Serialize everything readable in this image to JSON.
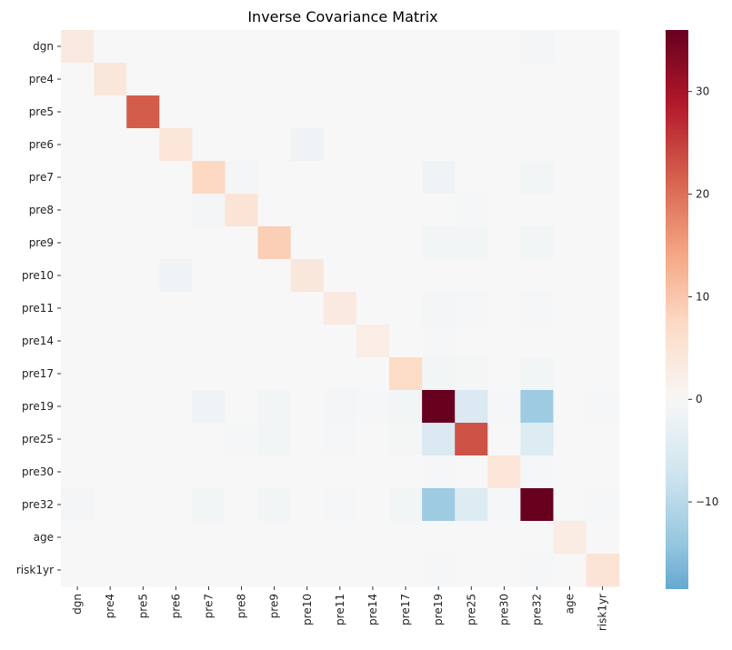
{
  "chart_data": {
    "type": "heatmap",
    "title": "Inverse Covariance Matrix",
    "xlabel": "",
    "ylabel": "",
    "labels": [
      "dgn",
      "pre4",
      "pre5",
      "pre6",
      "pre7",
      "pre8",
      "pre9",
      "pre10",
      "pre11",
      "pre14",
      "pre17",
      "pre19",
      "pre25",
      "pre30",
      "pre32",
      "age",
      "risk1yr"
    ],
    "matrix": [
      [
        3.5,
        0,
        0,
        0,
        0,
        0,
        0,
        0,
        0,
        0,
        0,
        0,
        0,
        0,
        -0.7,
        0,
        0
      ],
      [
        0,
        4,
        0,
        0,
        0,
        0,
        0,
        0,
        0,
        0,
        0,
        0,
        0,
        0,
        0,
        0,
        0
      ],
      [
        0,
        0,
        22,
        0,
        0,
        0,
        0,
        0,
        0,
        0,
        0,
        0,
        0,
        0,
        0,
        0,
        0
      ],
      [
        0,
        0,
        0,
        4.5,
        0,
        0,
        0,
        -1.5,
        0,
        0,
        0,
        0,
        0,
        0,
        0,
        0,
        0
      ],
      [
        0,
        0,
        0,
        0,
        7.5,
        -0.8,
        0,
        0,
        0,
        0,
        0,
        -1.5,
        0,
        0,
        -1,
        0,
        0
      ],
      [
        0,
        0,
        0,
        0,
        -0.8,
        5,
        0,
        0,
        0,
        0,
        0,
        0,
        -0.5,
        0,
        0,
        0,
        0
      ],
      [
        0,
        0,
        0,
        0,
        0,
        0,
        9,
        0,
        0,
        0,
        0,
        -1,
        -1,
        0,
        -1,
        0,
        0
      ],
      [
        0,
        0,
        0,
        -1.5,
        0,
        0,
        0,
        4,
        0,
        0,
        0,
        0,
        0,
        0,
        0,
        0,
        0
      ],
      [
        0,
        0,
        0,
        0,
        0,
        0,
        0,
        0,
        3.5,
        0,
        0,
        -0.7,
        -0.3,
        0,
        -0.5,
        0,
        0
      ],
      [
        0,
        0,
        0,
        0,
        0,
        0,
        0,
        0,
        0,
        2.5,
        0,
        -0.4,
        0,
        0,
        0,
        0,
        0
      ],
      [
        0,
        0,
        0,
        0,
        0,
        0,
        0,
        0,
        0,
        0,
        7,
        -1,
        -0.6,
        0,
        -1,
        0,
        0
      ],
      [
        0,
        0,
        0,
        0,
        -1.5,
        0,
        -1,
        0,
        -0.7,
        -0.4,
        -1,
        36,
        -5.5,
        -0.3,
        -13,
        0,
        -0.4
      ],
      [
        0,
        0,
        0,
        0,
        0,
        -0.5,
        -1,
        0,
        -0.3,
        0,
        -0.6,
        -5.5,
        23,
        0,
        -5,
        0,
        0
      ],
      [
        0,
        0,
        0,
        0,
        0,
        0,
        0,
        0,
        0,
        0,
        0,
        -0.3,
        0,
        4.5,
        -0.5,
        0,
        0
      ],
      [
        -0.7,
        0,
        0,
        0,
        -1,
        0,
        -1,
        0,
        -0.5,
        0,
        -1,
        -13,
        -5,
        -0.5,
        36,
        0,
        -0.3
      ],
      [
        0,
        0,
        0,
        0,
        0,
        0,
        0,
        0,
        0,
        0,
        0,
        0,
        0,
        0,
        0,
        3,
        0
      ],
      [
        0,
        0,
        0,
        0,
        0,
        0,
        0,
        0,
        0,
        0,
        0,
        -0.4,
        0,
        0,
        -0.3,
        0,
        5
      ]
    ],
    "colorbar": {
      "vmin": -18.5,
      "vmax": 36,
      "center": 0,
      "ticks": [
        "−10",
        "0",
        "10",
        "20",
        "30"
      ],
      "tick_values": [
        -10,
        0,
        10,
        20,
        30
      ]
    },
    "colormap": "RdBu_r",
    "grid": false
  }
}
